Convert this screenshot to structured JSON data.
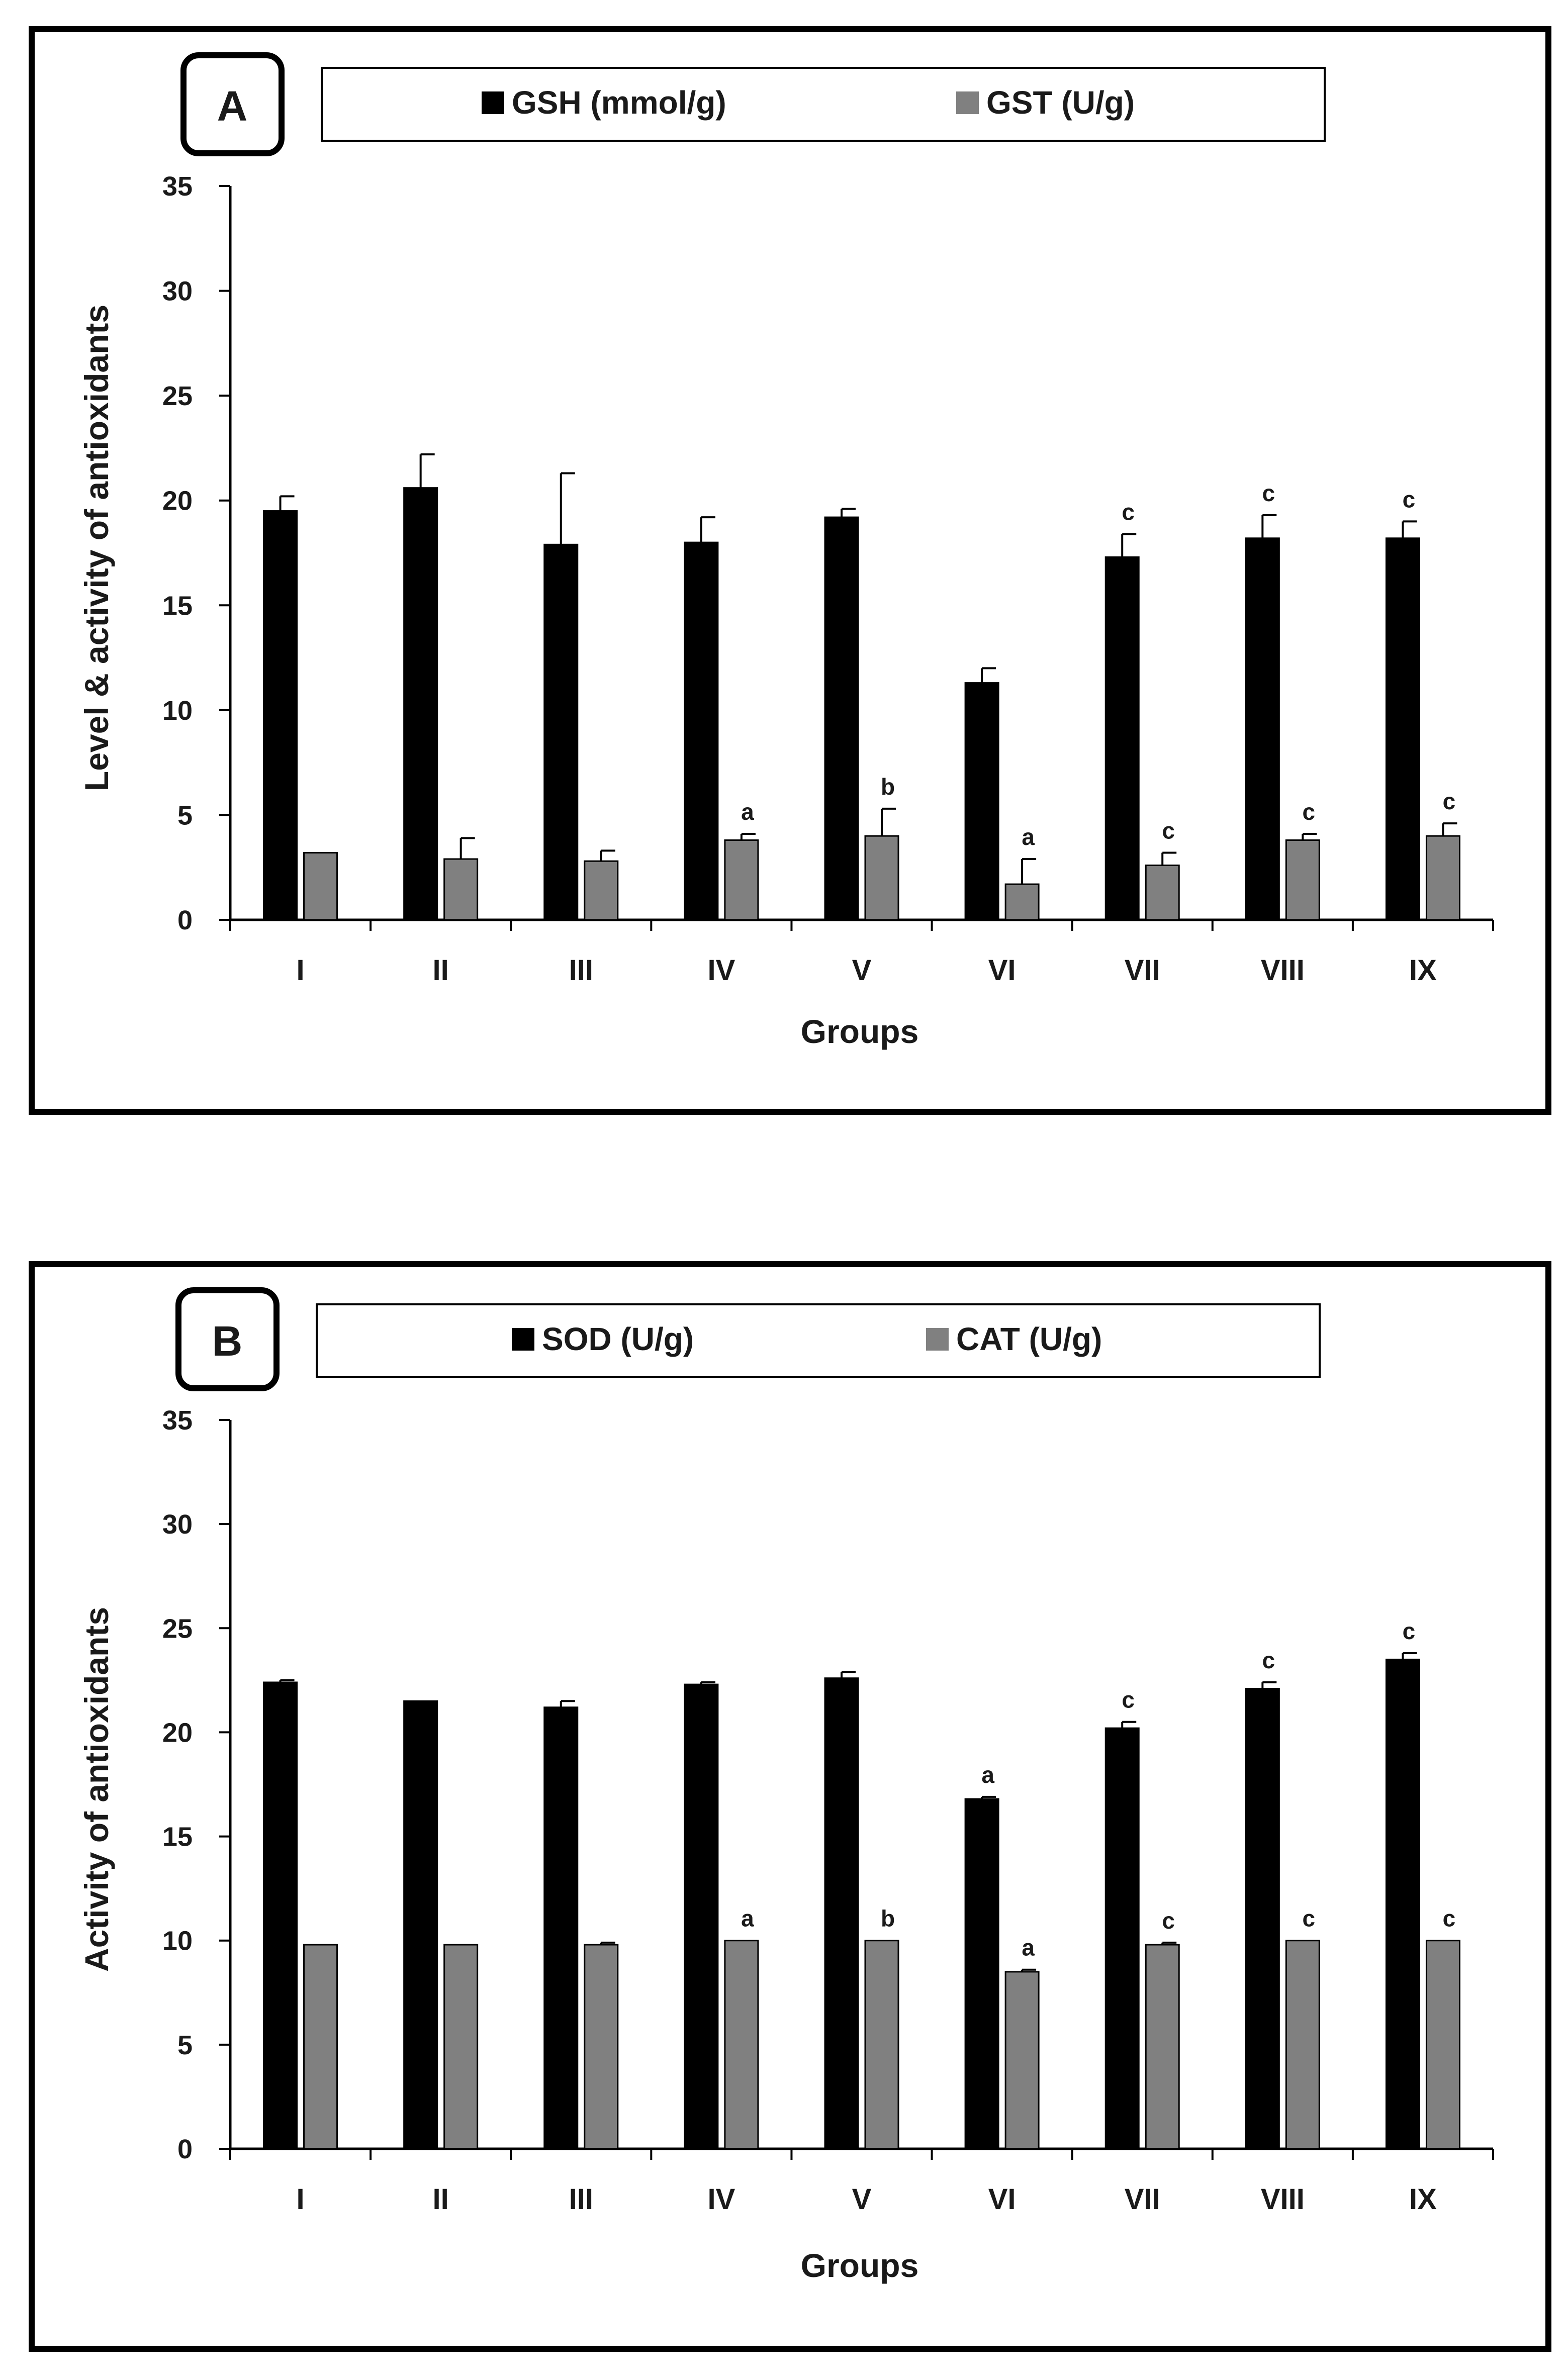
{
  "chart_data": [
    {
      "type": "bar",
      "panel": "A",
      "title": "",
      "xlabel": "Groups",
      "ylabel": "Level & activity of antioxidants",
      "ylim": [
        0,
        35
      ],
      "yticks": [
        0,
        5,
        10,
        15,
        20,
        25,
        30,
        35
      ],
      "categories": [
        "I",
        "II",
        "III",
        "IV",
        "V",
        "VI",
        "VII",
        "VIII",
        "IX"
      ],
      "series": [
        {
          "name": "GSH (mmol/g)",
          "color": "#000000",
          "values": [
            19.5,
            20.6,
            17.9,
            18.0,
            19.2,
            11.3,
            17.3,
            18.2,
            18.2
          ],
          "errors": [
            0.7,
            1.6,
            3.4,
            1.2,
            0.4,
            0.7,
            1.1,
            1.1,
            0.8
          ],
          "labels": [
            "",
            "",
            "",
            "",
            "",
            "",
            "c",
            "c",
            "c"
          ]
        },
        {
          "name": "GST (U/g)",
          "color": "#808080",
          "values": [
            3.2,
            2.9,
            2.8,
            3.8,
            4.0,
            1.7,
            2.6,
            3.8,
            4.0
          ],
          "errors": [
            0.0,
            1.0,
            0.5,
            0.3,
            1.3,
            1.2,
            0.6,
            0.3,
            0.6
          ],
          "labels": [
            "",
            "",
            "",
            "a",
            "b",
            "a",
            "c",
            "c",
            "c"
          ]
        }
      ]
    },
    {
      "type": "bar",
      "panel": "B",
      "title": "",
      "xlabel": "Groups",
      "ylabel": "Activity of antioxidants",
      "ylim": [
        0,
        35
      ],
      "yticks": [
        0,
        5,
        10,
        15,
        20,
        25,
        30,
        35
      ],
      "categories": [
        "I",
        "II",
        "III",
        "IV",
        "V",
        "VI",
        "VII",
        "VIII",
        "IX"
      ],
      "series": [
        {
          "name": "SOD (U/g)",
          "color": "#000000",
          "values": [
            22.4,
            21.5,
            21.2,
            22.3,
            22.6,
            16.8,
            20.2,
            22.1,
            23.5
          ],
          "errors": [
            0.1,
            0.0,
            0.3,
            0.1,
            0.3,
            0.1,
            0.3,
            0.3,
            0.3
          ],
          "labels": [
            "",
            "",
            "",
            "",
            "",
            "a",
            "c",
            "c",
            "c"
          ]
        },
        {
          "name": "CAT (U/g)",
          "color": "#808080",
          "values": [
            9.8,
            9.8,
            9.8,
            10.0,
            10.0,
            8.5,
            9.8,
            10.0,
            10.0
          ],
          "errors": [
            0.0,
            0.0,
            0.1,
            0.0,
            0.0,
            0.1,
            0.1,
            0.0,
            0.0
          ],
          "labels": [
            "",
            "",
            "",
            "a",
            "b",
            "a",
            "c",
            "c",
            "c"
          ]
        }
      ]
    }
  ]
}
